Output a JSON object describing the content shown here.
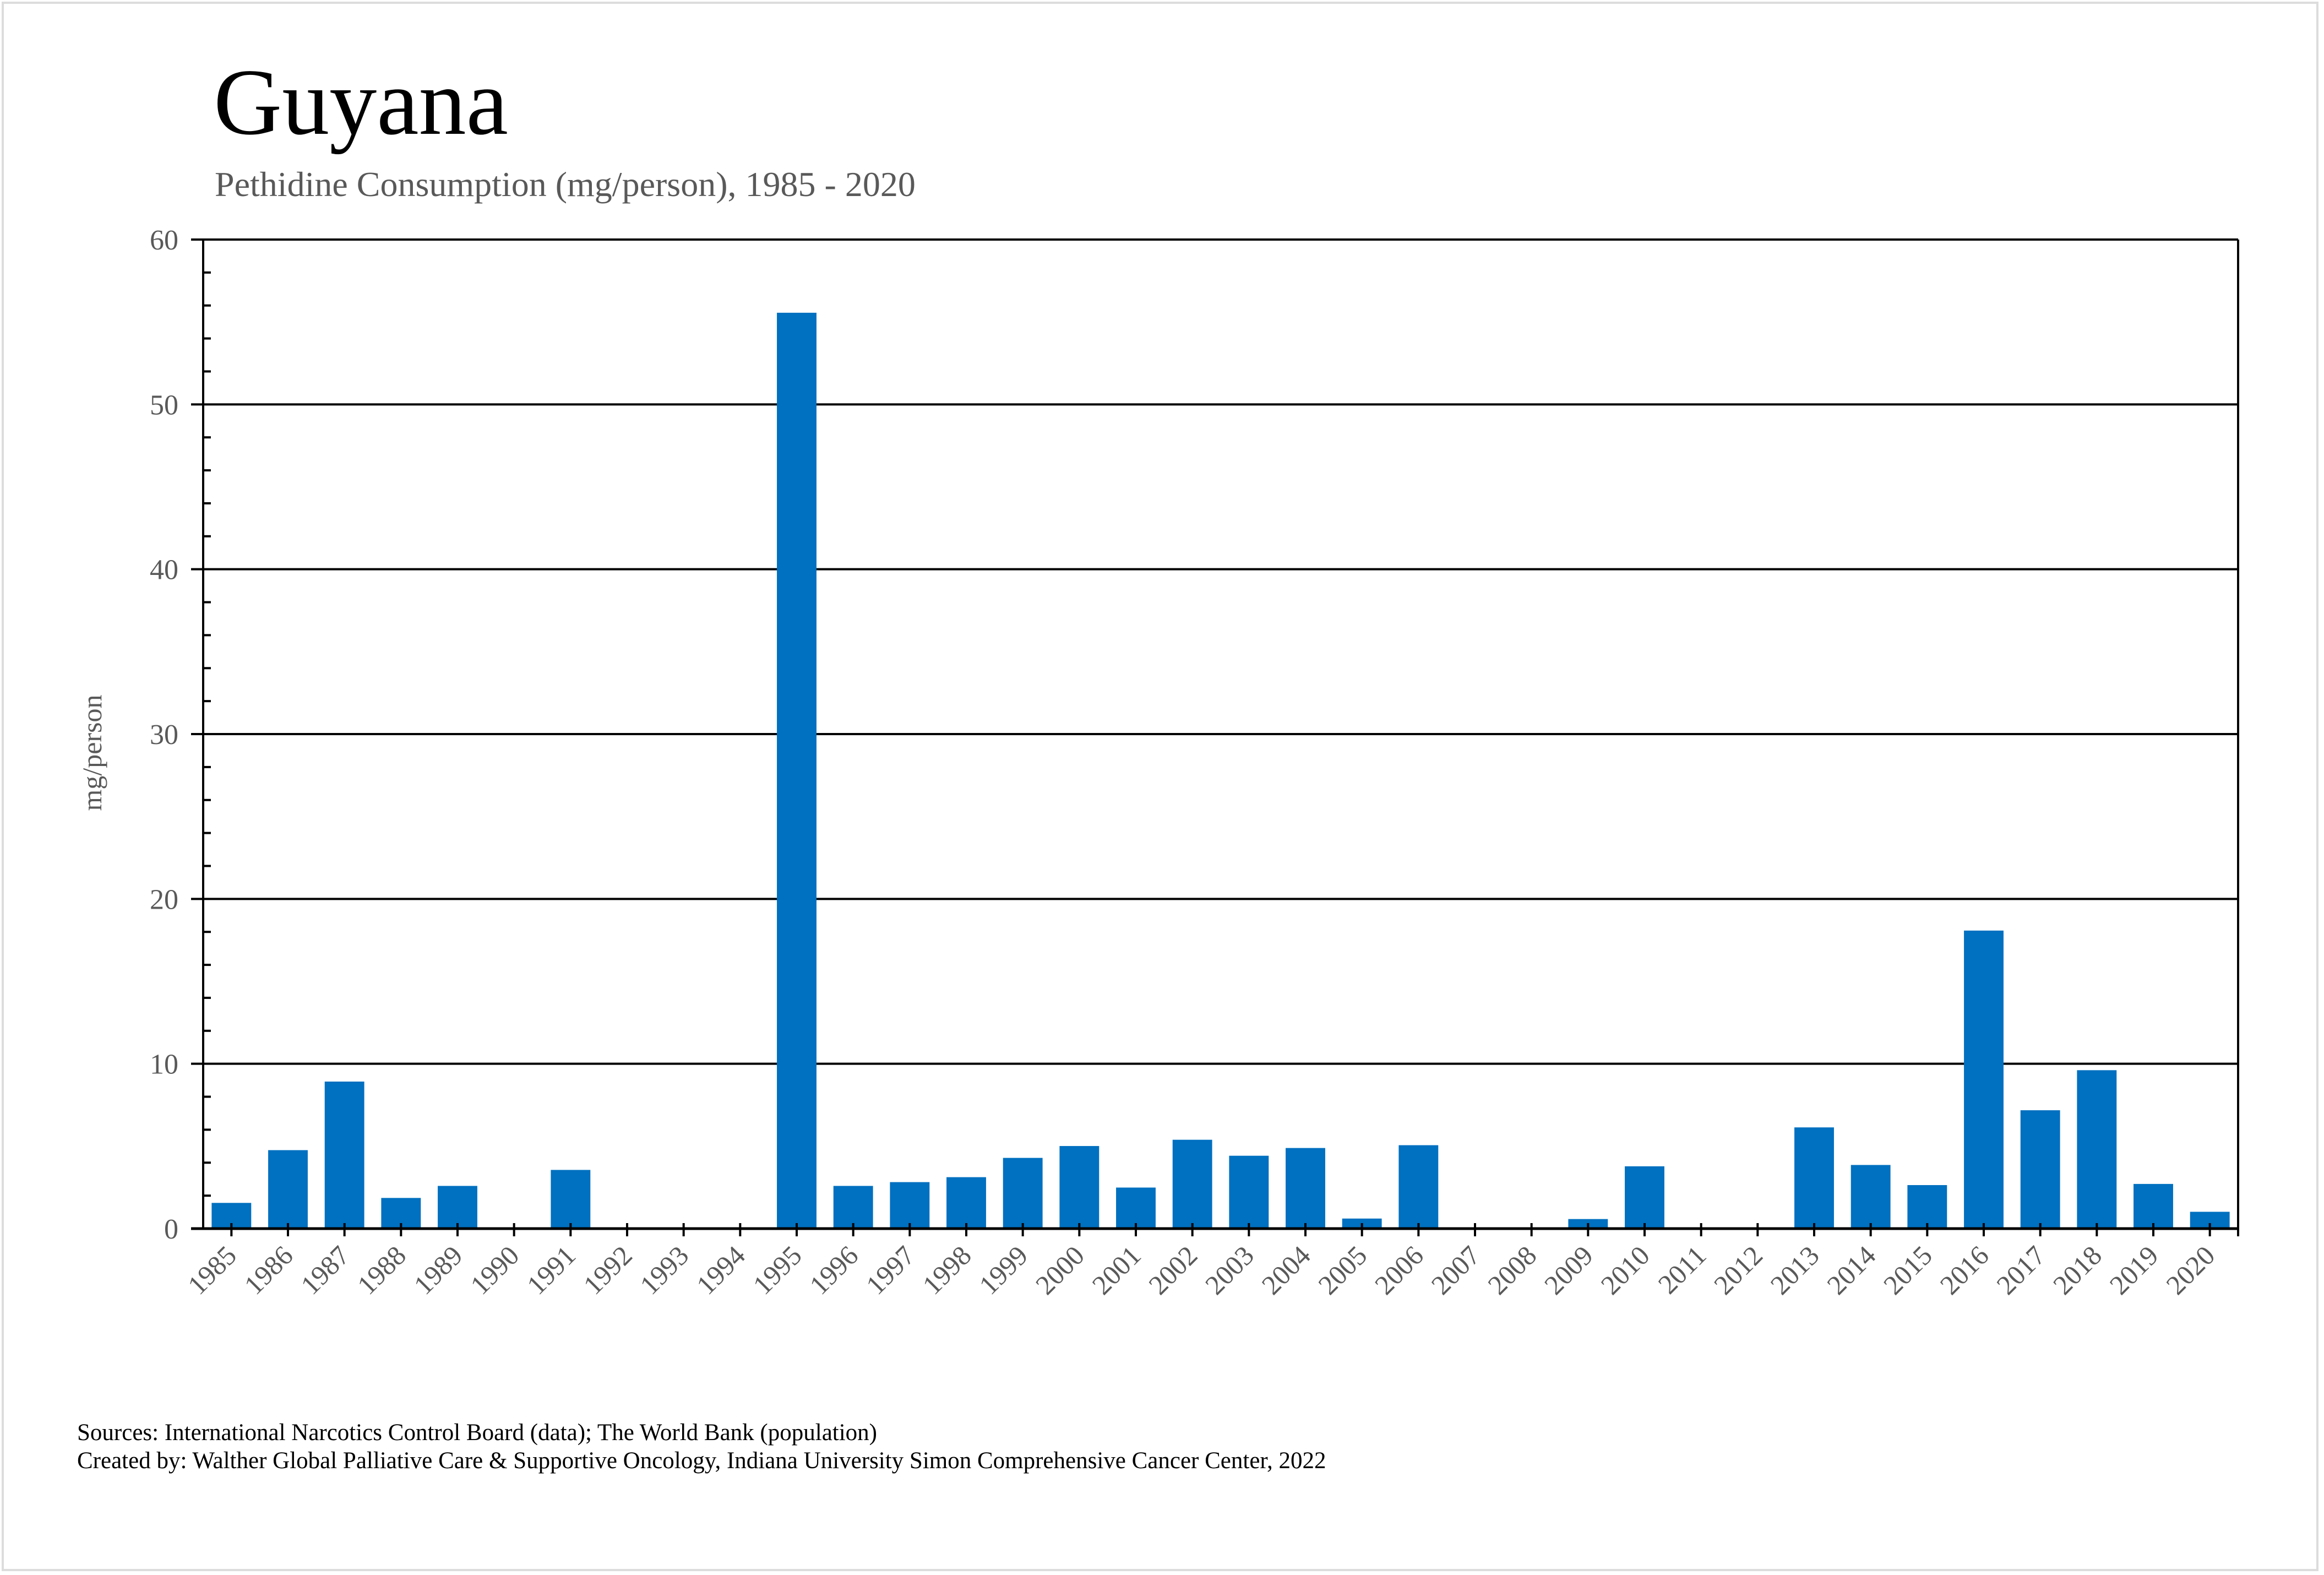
{
  "chart_data": {
    "type": "bar",
    "title": "Guyana",
    "subtitle": "Pethidine Consumption (mg/person), 1985 - 2020",
    "xlabel": "",
    "ylabel": "mg/person",
    "ylim": [
      0,
      60
    ],
    "yticks": [
      0,
      10,
      20,
      30,
      40,
      50,
      60
    ],
    "y_minor_step": 2,
    "grid": true,
    "bar_color": "#0070C0",
    "categories": [
      "1985",
      "1986",
      "1987",
      "1988",
      "1989",
      "1990",
      "1991",
      "1992",
      "1993",
      "1994",
      "1995",
      "1996",
      "1997",
      "1998",
      "1999",
      "2000",
      "2001",
      "2002",
      "2003",
      "2004",
      "2005",
      "2006",
      "2007",
      "2008",
      "2009",
      "2010",
      "2011",
      "2012",
      "2013",
      "2014",
      "2015",
      "2016",
      "2017",
      "2018",
      "2019",
      "2020"
    ],
    "values": [
      1.56,
      4.76,
      8.92,
      1.86,
      2.59,
      0,
      3.56,
      0,
      0,
      0,
      55.56,
      2.59,
      2.82,
      3.12,
      4.29,
      5.01,
      2.49,
      5.39,
      4.42,
      4.89,
      0.61,
      5.06,
      0,
      0,
      0.58,
      3.78,
      0,
      0,
      6.14,
      3.86,
      2.64,
      18.08,
      7.18,
      9.61,
      2.71,
      1.02
    ]
  },
  "footer": {
    "sources": "Sources: International Narcotics Control Board (data); The World Bank (population)",
    "created_by": "Created by: Walther Global Palliative Care & Supportive Oncology, Indiana University Simon Comprehensive Cancer Center, 2022"
  }
}
